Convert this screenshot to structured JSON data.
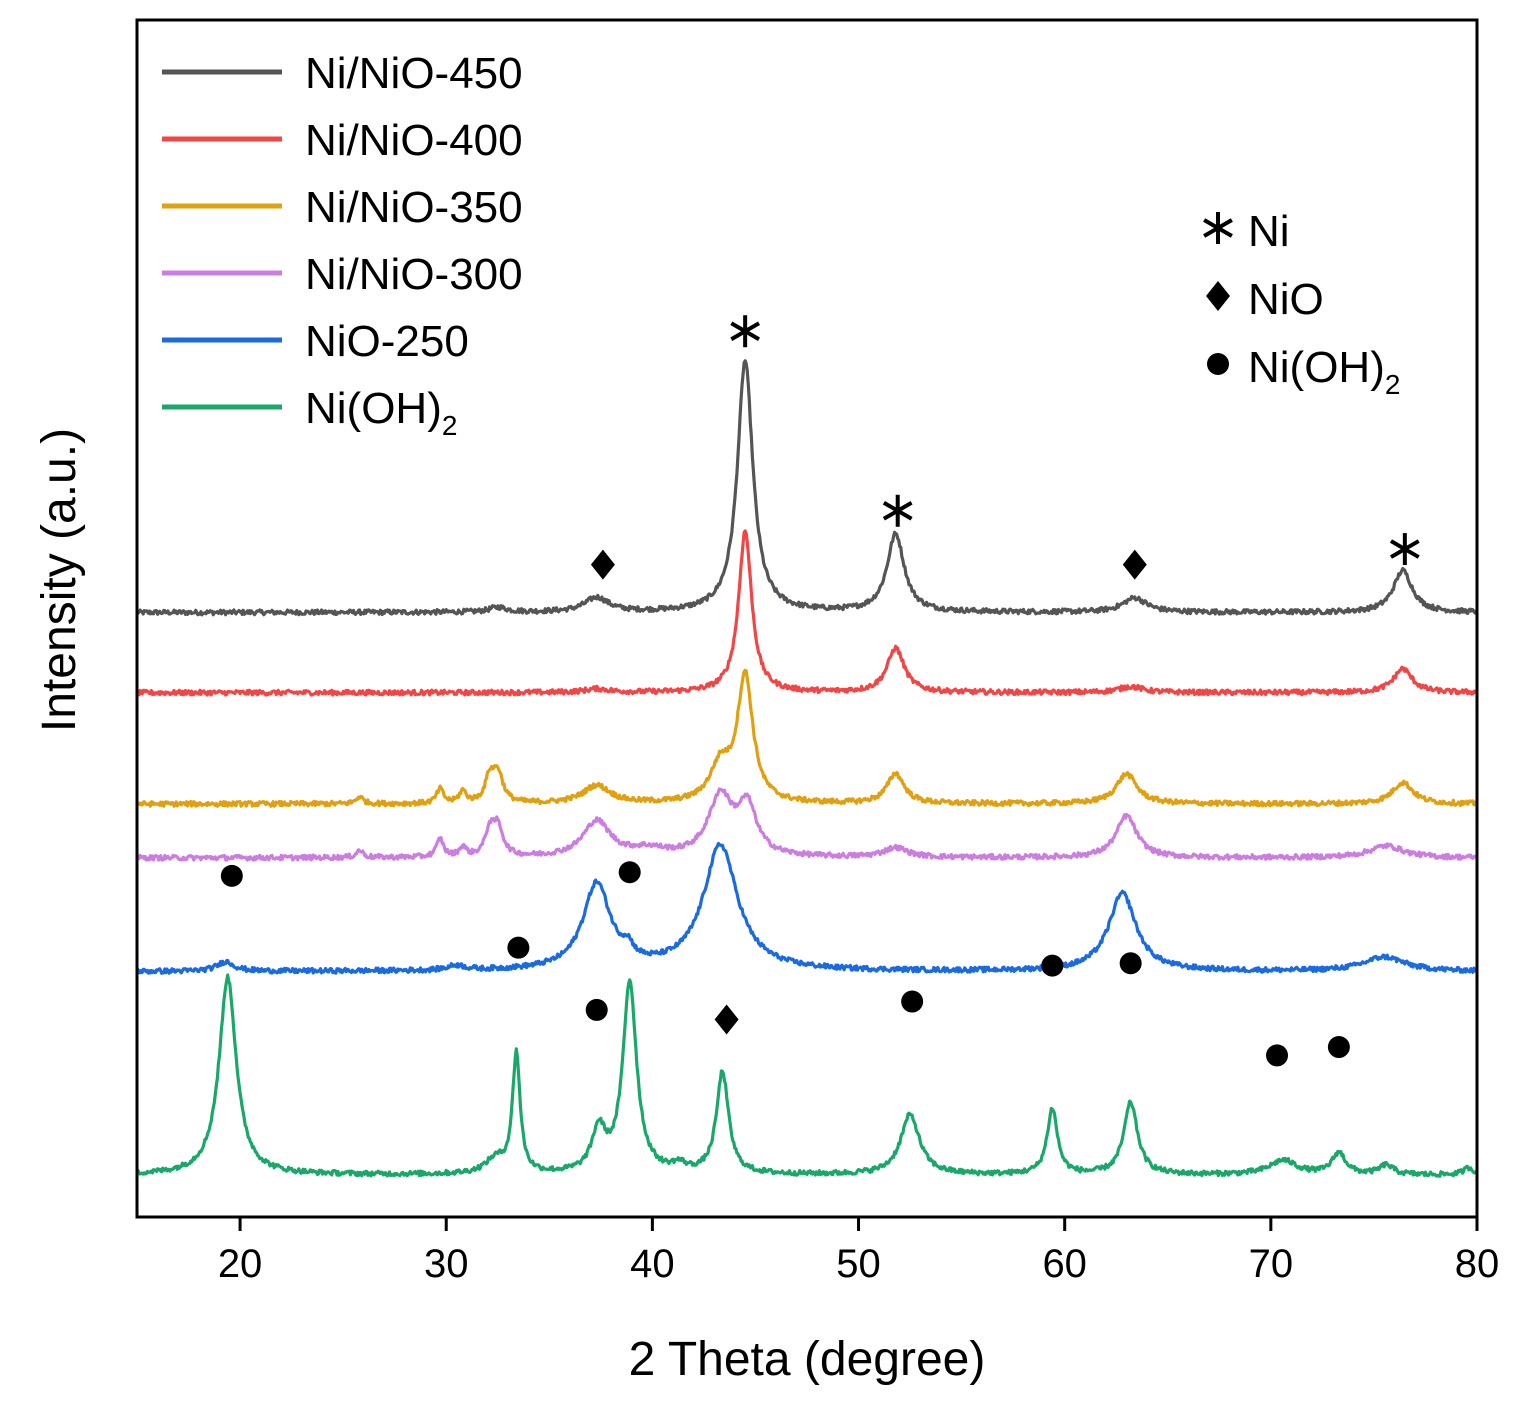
{
  "chart_data": {
    "type": "line",
    "title": "",
    "xlabel": "2 Theta (degree)",
    "ylabel": "Intensity (a.u.)",
    "xlim": [
      15,
      80
    ],
    "xticks": [
      20,
      30,
      40,
      50,
      60,
      70,
      80
    ],
    "ylim": [
      0,
      1
    ],
    "ticks_y": false,
    "legend_position": "top-left",
    "series": [
      {
        "name": "Ni/NiO-450",
        "label_main": "Ni/NiO-450",
        "label_sub": "",
        "color": "#555555",
        "baseline": 0.505,
        "peaks": [
          [
            44.5,
            0.21,
            0.45
          ],
          [
            51.8,
            0.065,
            0.5
          ],
          [
            76.4,
            0.035,
            0.55
          ],
          [
            37.3,
            0.012,
            0.7
          ],
          [
            63.4,
            0.012,
            0.7
          ],
          [
            32.5,
            0.004,
            0.5
          ]
        ]
      },
      {
        "name": "Ni/NiO-400",
        "label_main": "Ni/NiO-400",
        "label_sub": "",
        "color": "#f24646",
        "baseline": 0.438,
        "peaks": [
          [
            44.5,
            0.135,
            0.38
          ],
          [
            51.8,
            0.037,
            0.5
          ],
          [
            76.4,
            0.02,
            0.55
          ],
          [
            37.3,
            0.003,
            0.7
          ],
          [
            63.2,
            0.005,
            0.7
          ]
        ]
      },
      {
        "name": "Ni/NiO-350",
        "label_main": "Ni/NiO-350",
        "label_sub": "",
        "color": "#e0a010",
        "baseline": 0.345,
        "peaks": [
          [
            44.5,
            0.105,
            0.45
          ],
          [
            43.3,
            0.03,
            0.6
          ],
          [
            51.8,
            0.025,
            0.5
          ],
          [
            63.0,
            0.025,
            0.6
          ],
          [
            76.4,
            0.018,
            0.6
          ],
          [
            37.3,
            0.015,
            0.8
          ],
          [
            32.5,
            0.025,
            0.3
          ],
          [
            32.1,
            0.02,
            0.25
          ],
          [
            29.7,
            0.012,
            0.2
          ],
          [
            30.8,
            0.01,
            0.2
          ],
          [
            25.8,
            0.006,
            0.2
          ]
        ]
      },
      {
        "name": "Ni/NiO-300",
        "label_main": "Ni/NiO-300",
        "label_sub": "",
        "color": "#cc7ee0",
        "baseline": 0.3,
        "peaks": [
          [
            43.3,
            0.05,
            0.7
          ],
          [
            44.6,
            0.04,
            0.55
          ],
          [
            37.3,
            0.03,
            0.8
          ],
          [
            63.0,
            0.035,
            0.6
          ],
          [
            51.8,
            0.008,
            0.7
          ],
          [
            75.6,
            0.01,
            1.0
          ],
          [
            32.5,
            0.025,
            0.3
          ],
          [
            32.1,
            0.02,
            0.25
          ],
          [
            29.7,
            0.015,
            0.2
          ],
          [
            30.8,
            0.008,
            0.2
          ],
          [
            25.8,
            0.006,
            0.2
          ],
          [
            39.8,
            0.006,
            1.0
          ]
        ]
      },
      {
        "name": "NiO-250",
        "label_main": "NiO-250",
        "label_sub": "",
        "color": "#1a6ae0",
        "baseline": 0.205,
        "peaks": [
          [
            43.3,
            0.105,
            1.0
          ],
          [
            37.3,
            0.072,
            0.8
          ],
          [
            62.8,
            0.065,
            0.8
          ],
          [
            38.8,
            0.01,
            0.3
          ],
          [
            75.5,
            0.012,
            1.2
          ],
          [
            19.3,
            0.008,
            0.5
          ],
          [
            30.5,
            0.004,
            0.5
          ]
        ]
      },
      {
        "name": "Ni(OH)2",
        "label_main": "Ni(OH)",
        "label_sub": "2",
        "color": "#1aa86a",
        "baseline": 0.035,
        "peaks": [
          [
            19.4,
            0.165,
            0.5
          ],
          [
            33.4,
            0.1,
            0.22
          ],
          [
            38.9,
            0.16,
            0.4
          ],
          [
            37.4,
            0.035,
            0.4
          ],
          [
            43.4,
            0.085,
            0.35
          ],
          [
            52.5,
            0.05,
            0.55
          ],
          [
            59.4,
            0.055,
            0.3
          ],
          [
            63.2,
            0.06,
            0.4
          ],
          [
            70.6,
            0.012,
            0.8
          ],
          [
            73.3,
            0.018,
            0.4
          ],
          [
            75.6,
            0.008,
            0.4
          ],
          [
            32.4,
            0.012,
            0.6
          ],
          [
            41.3,
            0.006,
            0.4
          ],
          [
            79.6,
            0.006,
            0.3
          ]
        ]
      }
    ],
    "phase_markers": [
      {
        "phase": "Ni",
        "symbol": "asterisk",
        "x": 44.5,
        "y": 0.74
      },
      {
        "phase": "Ni",
        "symbol": "asterisk",
        "x": 51.9,
        "y": 0.59
      },
      {
        "phase": "Ni",
        "symbol": "asterisk",
        "x": 76.5,
        "y": 0.558
      },
      {
        "phase": "NiO",
        "symbol": "diamond",
        "x": 37.6,
        "y": 0.545
      },
      {
        "phase": "NiO",
        "symbol": "diamond",
        "x": 63.4,
        "y": 0.545
      },
      {
        "phase": "NiO",
        "symbol": "diamond",
        "x": 43.6,
        "y": 0.165
      },
      {
        "phase": "Ni(OH)2",
        "symbol": "dot",
        "x": 19.6,
        "y": 0.285
      },
      {
        "phase": "Ni(OH)2",
        "symbol": "dot",
        "x": 33.5,
        "y": 0.225
      },
      {
        "phase": "Ni(OH)2",
        "symbol": "dot",
        "x": 37.3,
        "y": 0.173
      },
      {
        "phase": "Ni(OH)2",
        "symbol": "dot",
        "x": 38.9,
        "y": 0.288
      },
      {
        "phase": "Ni(OH)2",
        "symbol": "dot",
        "x": 52.6,
        "y": 0.18
      },
      {
        "phase": "Ni(OH)2",
        "symbol": "dot",
        "x": 59.4,
        "y": 0.21
      },
      {
        "phase": "Ni(OH)2",
        "symbol": "dot",
        "x": 63.2,
        "y": 0.212
      },
      {
        "phase": "Ni(OH)2",
        "symbol": "dot",
        "x": 70.3,
        "y": 0.135
      },
      {
        "phase": "Ni(OH)2",
        "symbol": "dot",
        "x": 73.3,
        "y": 0.142
      }
    ],
    "phase_legend": [
      {
        "symbol": "asterisk",
        "label_main": "Ni",
        "label_sub": ""
      },
      {
        "symbol": "diamond",
        "label_main": "NiO",
        "label_sub": ""
      },
      {
        "symbol": "dot",
        "label_main": "Ni(OH)",
        "label_sub": "2"
      }
    ]
  }
}
